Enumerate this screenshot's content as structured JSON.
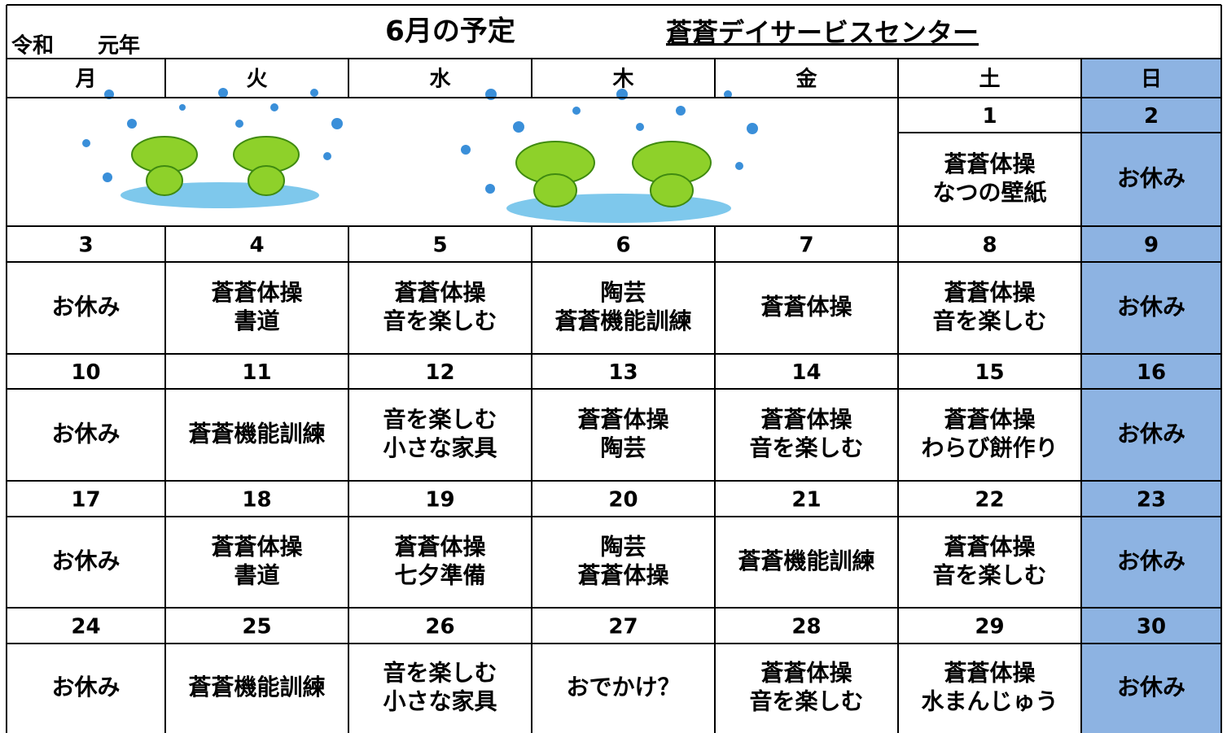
{
  "header": {
    "era": "令和",
    "year": "元年",
    "title": "6月の予定",
    "organization": "蒼蒼デイサービスセンター"
  },
  "weekdays": [
    "月",
    "火",
    "水",
    "木",
    "金",
    "土",
    "日"
  ],
  "weeks": [
    [
      null,
      null,
      null,
      null,
      null,
      {
        "date": 1,
        "lines": [
          "蒼蒼体操",
          "なつの壁紙"
        ]
      },
      {
        "date": 2,
        "lines": [
          "お休み"
        ]
      }
    ],
    [
      {
        "date": 3,
        "lines": [
          "お休み"
        ]
      },
      {
        "date": 4,
        "lines": [
          "蒼蒼体操",
          "書道"
        ]
      },
      {
        "date": 5,
        "lines": [
          "蒼蒼体操",
          "音を楽しむ"
        ]
      },
      {
        "date": 6,
        "lines": [
          "陶芸",
          "蒼蒼機能訓練"
        ]
      },
      {
        "date": 7,
        "lines": [
          "蒼蒼体操"
        ]
      },
      {
        "date": 8,
        "lines": [
          "蒼蒼体操",
          "音を楽しむ"
        ]
      },
      {
        "date": 9,
        "lines": [
          "お休み"
        ]
      }
    ],
    [
      {
        "date": 10,
        "lines": [
          "お休み"
        ]
      },
      {
        "date": 11,
        "lines": [
          "蒼蒼機能訓練"
        ]
      },
      {
        "date": 12,
        "lines": [
          "音を楽しむ",
          "小さな家具"
        ]
      },
      {
        "date": 13,
        "lines": [
          "蒼蒼体操",
          "陶芸"
        ]
      },
      {
        "date": 14,
        "lines": [
          "蒼蒼体操",
          "音を楽しむ"
        ]
      },
      {
        "date": 15,
        "lines": [
          "蒼蒼体操",
          "わらび餅作り"
        ]
      },
      {
        "date": 16,
        "lines": [
          "お休み"
        ]
      }
    ],
    [
      {
        "date": 17,
        "lines": [
          "お休み"
        ]
      },
      {
        "date": 18,
        "lines": [
          "蒼蒼体操",
          "書道"
        ]
      },
      {
        "date": 19,
        "lines": [
          "蒼蒼体操",
          "七夕準備"
        ]
      },
      {
        "date": 20,
        "lines": [
          "陶芸",
          "蒼蒼体操"
        ]
      },
      {
        "date": 21,
        "lines": [
          "蒼蒼機能訓練"
        ]
      },
      {
        "date": 22,
        "lines": [
          "蒼蒼体操",
          "音を楽しむ"
        ]
      },
      {
        "date": 23,
        "lines": [
          "お休み"
        ]
      }
    ],
    [
      {
        "date": 24,
        "lines": [
          "お休み"
        ]
      },
      {
        "date": 25,
        "lines": [
          "蒼蒼機能訓練"
        ]
      },
      {
        "date": 26,
        "lines": [
          "音を楽しむ",
          "小さな家具"
        ]
      },
      {
        "date": 27,
        "lines": [
          "おでかけ？"
        ]
      },
      {
        "date": 28,
        "lines": [
          "蒼蒼体操",
          "音を楽しむ"
        ]
      },
      {
        "date": 29,
        "lines": [
          "蒼蒼体操",
          "水まんじゅう"
        ]
      },
      {
        "date": 30,
        "lines": [
          "お休み"
        ]
      }
    ]
  ]
}
